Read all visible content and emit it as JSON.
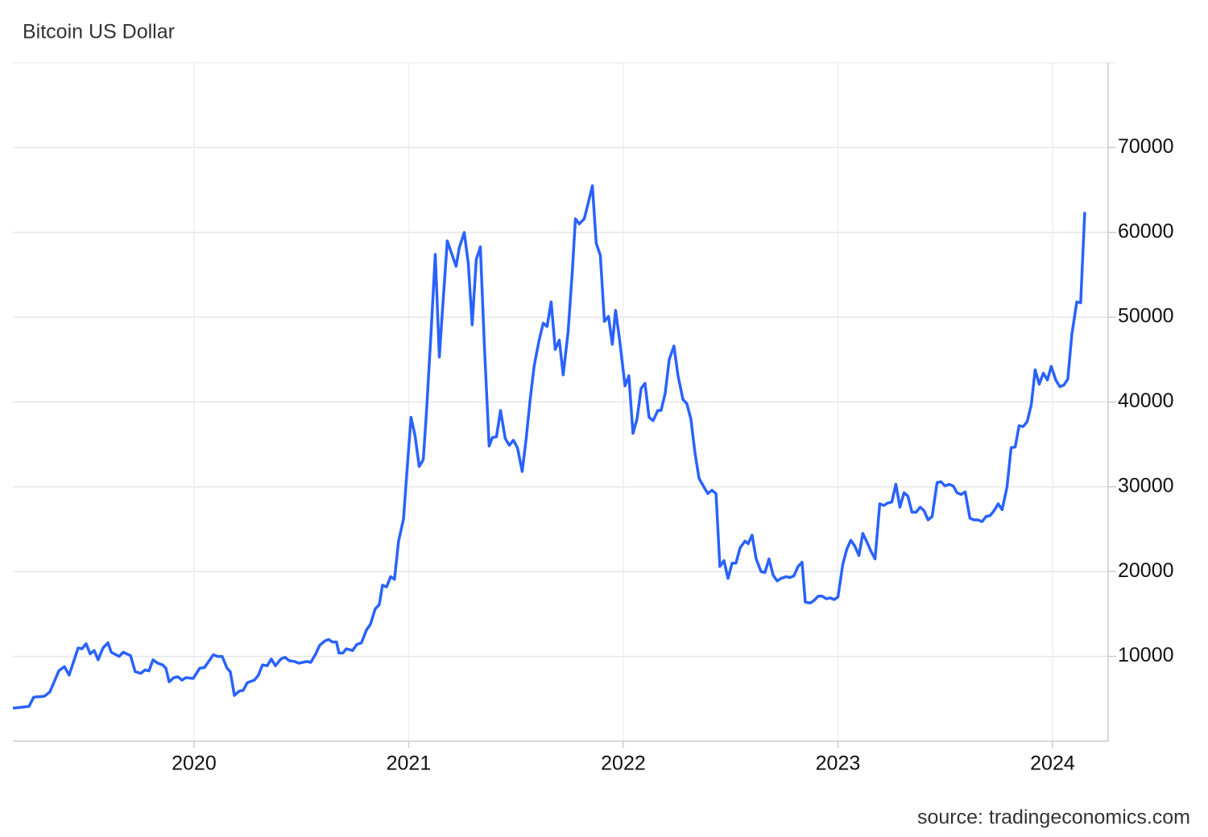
{
  "chart_data": {
    "type": "line",
    "title": "Bitcoin US Dollar",
    "source": "source: tradingeconomics.com",
    "color": "#2962ff",
    "grid": true,
    "xlim": [
      2019.156,
      2024.259
    ],
    "ylim": [
      0,
      80000
    ],
    "xticks": [
      2020,
      2021,
      2022,
      2023,
      2024
    ],
    "yticks": [
      10000,
      20000,
      30000,
      40000,
      50000,
      60000,
      70000
    ],
    "x": [
      2019.156,
      2019.231,
      2019.253,
      2019.302,
      2019.328,
      2019.37,
      2019.396,
      2019.418,
      2019.46,
      2019.478,
      2019.497,
      2019.516,
      2019.535,
      2019.553,
      2019.576,
      2019.599,
      2019.614,
      2019.651,
      2019.67,
      2019.704,
      2019.726,
      2019.752,
      2019.771,
      2019.79,
      2019.809,
      2019.831,
      2019.854,
      2019.869,
      2019.884,
      2019.906,
      2019.925,
      2019.944,
      2019.962,
      2019.996,
      2020.026,
      2020.049,
      2020.09,
      2020.109,
      2020.131,
      2020.154,
      2020.169,
      2020.188,
      2020.21,
      2020.229,
      2020.248,
      2020.281,
      2020.3,
      2020.319,
      2020.341,
      2020.36,
      2020.379,
      2020.405,
      2020.424,
      2020.443,
      2020.469,
      2020.488,
      2020.507,
      2020.525,
      2020.544,
      2020.567,
      2020.585,
      2020.608,
      2020.627,
      2020.645,
      2020.664,
      2020.675,
      2020.694,
      2020.709,
      2020.739,
      2020.758,
      2020.78,
      2020.803,
      2020.822,
      2020.844,
      2020.863,
      2020.878,
      2020.897,
      2020.916,
      2020.934,
      2020.953,
      2020.976,
      2020.991,
      2021.011,
      2021.03,
      2021.049,
      2021.068,
      2021.083,
      2021.105,
      2021.124,
      2021.143,
      2021.158,
      2021.18,
      2021.199,
      2021.221,
      2021.236,
      2021.259,
      2021.278,
      2021.296,
      2021.315,
      2021.334,
      2021.353,
      2021.375,
      2021.39,
      2021.409,
      2021.428,
      2021.45,
      2021.469,
      2021.488,
      2021.507,
      2021.529,
      2021.548,
      2021.567,
      2021.585,
      2021.608,
      2021.627,
      2021.645,
      2021.664,
      2021.683,
      2021.702,
      2021.72,
      2021.743,
      2021.762,
      2021.777,
      2021.795,
      2021.818,
      2021.837,
      2021.856,
      2021.874,
      2021.893,
      2021.912,
      2021.931,
      2021.949,
      2021.964,
      2021.983,
      2022.008,
      2022.026,
      2022.045,
      2022.064,
      2022.083,
      2022.101,
      2022.12,
      2022.139,
      2022.161,
      2022.176,
      2022.195,
      2022.214,
      2022.236,
      2022.255,
      2022.278,
      2022.296,
      2022.315,
      2022.334,
      2022.353,
      2022.375,
      2022.394,
      2022.413,
      2022.432,
      2022.45,
      2022.469,
      2022.488,
      2022.507,
      2022.525,
      2022.544,
      2022.567,
      2022.582,
      2022.6,
      2022.619,
      2022.642,
      2022.66,
      2022.679,
      2022.698,
      2022.717,
      2022.735,
      2022.758,
      2022.777,
      2022.795,
      2022.814,
      2022.833,
      2022.848,
      2022.871,
      2022.889,
      2022.908,
      2022.927,
      2022.946,
      2022.964,
      2022.983,
      2023.0,
      2023.023,
      2023.041,
      2023.06,
      2023.079,
      2023.098,
      2023.116,
      2023.135,
      2023.154,
      2023.173,
      2023.195,
      2023.214,
      2023.233,
      2023.251,
      2023.27,
      2023.289,
      2023.308,
      2023.326,
      2023.345,
      2023.364,
      2023.383,
      2023.401,
      2023.42,
      2023.439,
      2023.462,
      2023.48,
      2023.499,
      2023.518,
      2023.537,
      2023.555,
      2023.574,
      2023.593,
      2023.615,
      2023.634,
      2023.653,
      2023.672,
      2023.69,
      2023.709,
      2023.728,
      2023.747,
      2023.765,
      2023.788,
      2023.807,
      2023.826,
      2023.844,
      2023.863,
      2023.882,
      2023.901,
      2023.919,
      2023.938,
      2023.957,
      2023.976,
      2023.994,
      2024.015,
      2024.034,
      2024.053,
      2024.071,
      2024.09,
      2024.113,
      2024.131,
      2024.15
    ],
    "values": [
      3900,
      4100,
      5200,
      5300,
      5800,
      8300,
      8800,
      7800,
      11000,
      10900,
      11500,
      10300,
      10700,
      9600,
      11000,
      11600,
      10500,
      10000,
      10500,
      10100,
      8200,
      8000,
      8400,
      8300,
      9600,
      9200,
      9000,
      8600,
      7000,
      7500,
      7600,
      7200,
      7500,
      7400,
      8600,
      8700,
      10200,
      10000,
      10000,
      8600,
      8200,
      5400,
      5900,
      6000,
      6900,
      7200,
      7800,
      9000,
      8900,
      9700,
      8900,
      9700,
      9900,
      9500,
      9400,
      9200,
      9300,
      9400,
      9300,
      10300,
      11300,
      11800,
      12000,
      11700,
      11700,
      10400,
      10400,
      10900,
      10700,
      11400,
      11600,
      13100,
      13800,
      15600,
      16100,
      18400,
      18200,
      19400,
      19100,
      23600,
      26200,
      31500,
      38200,
      36000,
      32400,
      33200,
      38800,
      48500,
      57400,
      45300,
      51000,
      59000,
      57600,
      56000,
      58200,
      60000,
      56300,
      49100,
      56800,
      58300,
      46500,
      34800,
      35800,
      35900,
      39000,
      35700,
      34900,
      35500,
      34600,
      31800,
      35800,
      40500,
      44300,
      47300,
      49300,
      48900,
      51800,
      46200,
      47300,
      43200,
      48300,
      55200,
      61600,
      61000,
      61600,
      63500,
      65500,
      58700,
      57300,
      49500,
      50100,
      46800,
      50800,
      47300,
      41900,
      43100,
      36300,
      38000,
      41600,
      42200,
      38200,
      37800,
      39000,
      39000,
      41000,
      45000,
      46600,
      43100,
      40300,
      39800,
      38000,
      34000,
      31000,
      30000,
      29200,
      29600,
      29200,
      20600,
      21300,
      19200,
      21000,
      21000,
      22800,
      23600,
      23300,
      24300,
      21500,
      20000,
      19900,
      21500,
      19600,
      18900,
      19200,
      19400,
      19300,
      19500,
      20600,
      21100,
      16400,
      16300,
      16600,
      17100,
      17100,
      16800,
      16900,
      16700,
      17000,
      20900,
      22600,
      23700,
      23000,
      21900,
      24500,
      23500,
      22400,
      21500,
      28000,
      27800,
      28100,
      28200,
      30300,
      27600,
      29300,
      28900,
      27000,
      27000,
      27600,
      27200,
      26100,
      26500,
      30500,
      30600,
      30100,
      30300,
      30100,
      29300,
      29100,
      29400,
      26300,
      26100,
      26100,
      25900,
      26500,
      26600,
      27200,
      28000,
      27300,
      30000,
      34600,
      34700,
      37200,
      37100,
      37700,
      39700,
      43800,
      42100,
      43400,
      42600,
      44200,
      42600,
      41800,
      42000,
      42700,
      48000,
      51800,
      51700,
      62400
    ]
  }
}
